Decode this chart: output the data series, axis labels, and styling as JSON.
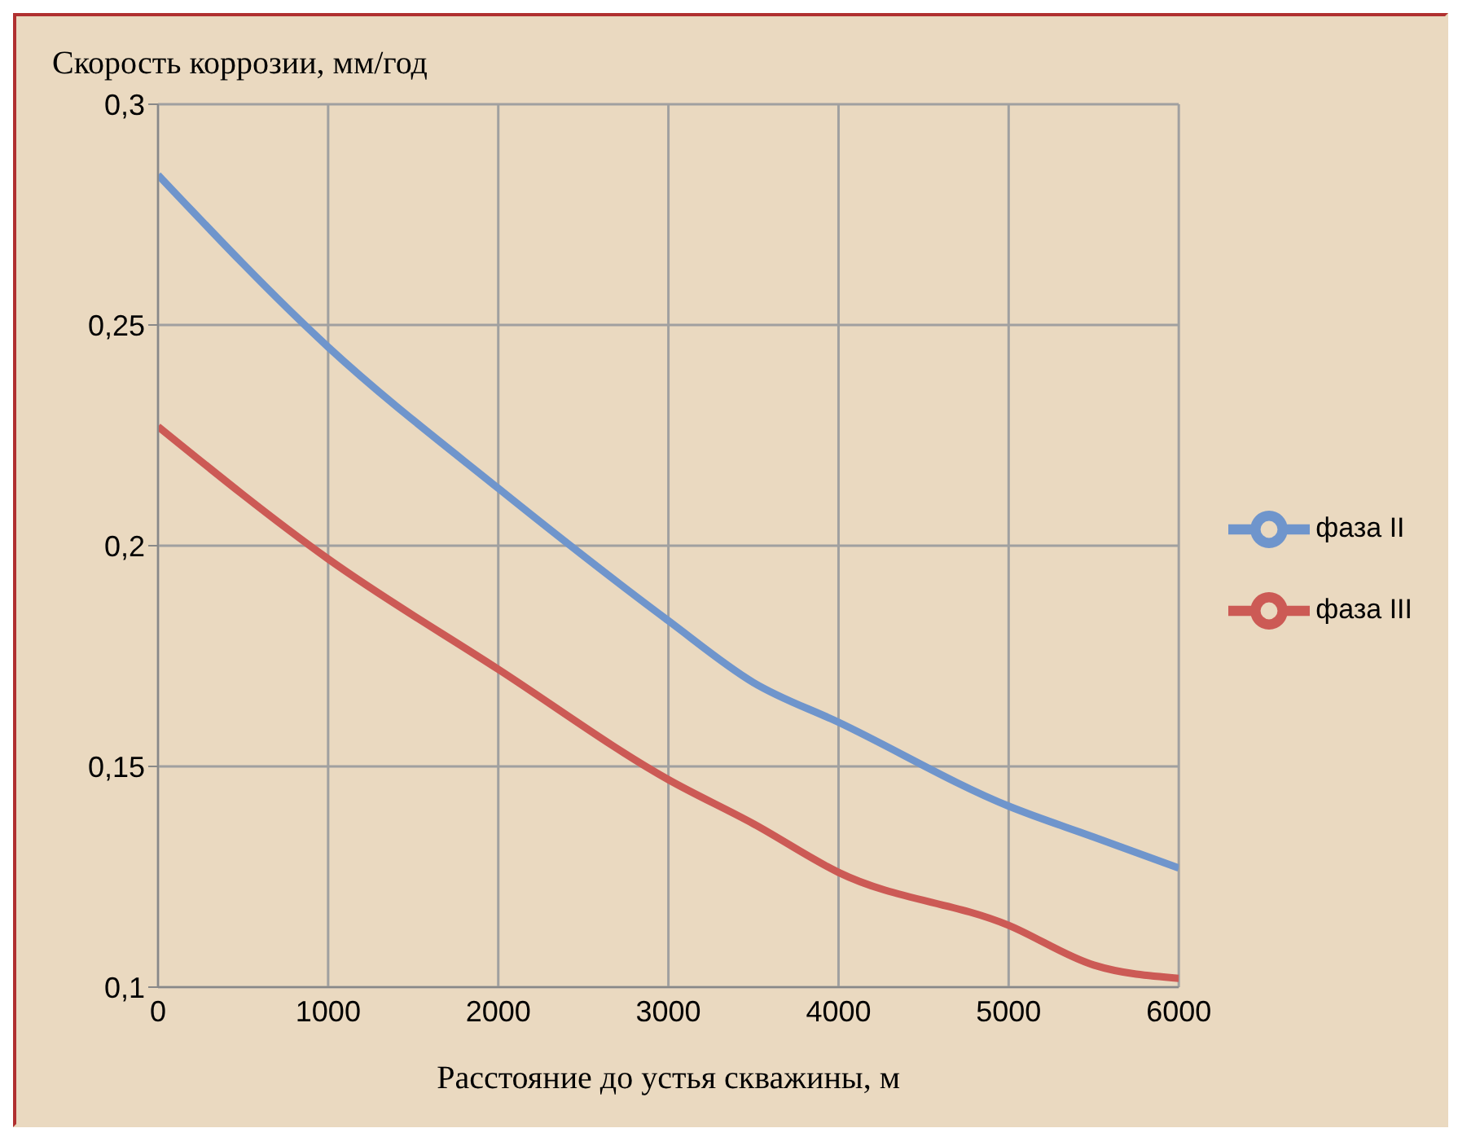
{
  "chart_data": {
    "type": "line",
    "ylabel": "Скорость коррозии,  мм/год",
    "xlabel": "Расстояние до устья скважины, м",
    "x": [
      0,
      1000,
      2000,
      3000,
      3500,
      4000,
      5000,
      5500,
      6000
    ],
    "series": [
      {
        "name": "фаза II",
        "color": "#6f95cc",
        "values": [
          0.284,
          0.245,
          0.213,
          0.183,
          0.169,
          0.16,
          0.141,
          0.134,
          0.127
        ]
      },
      {
        "name": "фаза III",
        "color": "#cc5a55",
        "values": [
          0.227,
          0.197,
          0.172,
          0.147,
          0.137,
          0.126,
          0.114,
          0.105,
          0.102
        ]
      }
    ],
    "xlim": [
      0,
      6000
    ],
    "xticks": [
      0,
      1000,
      2000,
      3000,
      4000,
      5000,
      6000
    ],
    "ylim": [
      0.1,
      0.3
    ],
    "yticks": [
      {
        "value": 0.1,
        "label": "0,1"
      },
      {
        "value": 0.15,
        "label": "0,15"
      },
      {
        "value": 0.2,
        "label": "0,2"
      },
      {
        "value": 0.25,
        "label": "0,25"
      },
      {
        "value": 0.3,
        "label": "0,3"
      }
    ],
    "grid": true,
    "legend": "right",
    "marker": "none",
    "line_style": "solid"
  }
}
